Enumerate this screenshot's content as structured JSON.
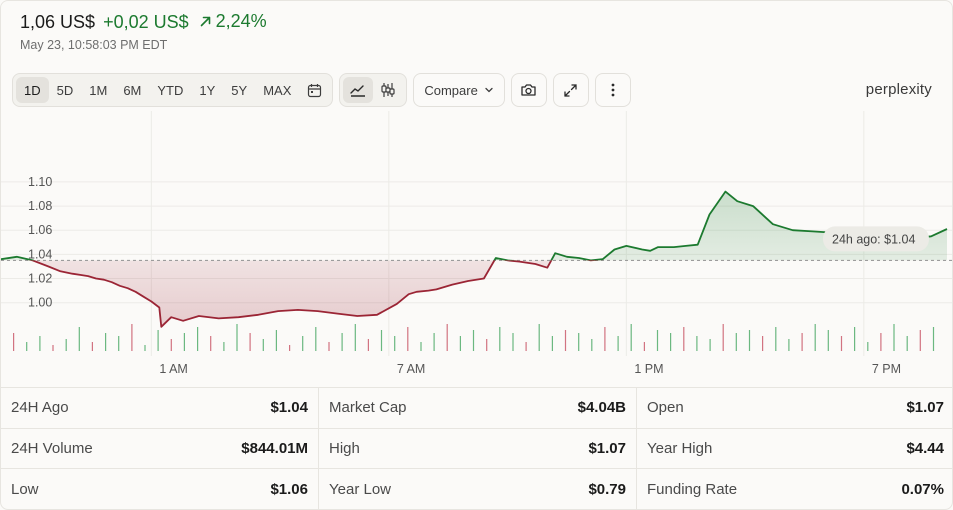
{
  "header": {
    "price": "1,06 US$",
    "change": "+0,02 US$",
    "change_pct": "2,24%",
    "timestamp": "May 23, 10:58:03 PM EDT",
    "trend_icon": "arrow-up-right-icon",
    "positive_color": "#1c7a2f"
  },
  "toolbar": {
    "ranges": [
      "1D",
      "5D",
      "1M",
      "6M",
      "YTD",
      "1Y",
      "5Y",
      "MAX"
    ],
    "active_range": "1D",
    "compare_label": "Compare"
  },
  "brand": "perplexity",
  "chart_data": {
    "type": "line",
    "x_ticks": [
      "1 AM",
      "7 AM",
      "1 PM",
      "7 PM"
    ],
    "y_ticks": [
      1.0,
      1.02,
      1.04,
      1.06,
      1.08,
      1.1
    ],
    "reference_line": {
      "value": 1.035,
      "label": "24h ago: $1.04"
    },
    "colors": {
      "above": "#1c7a2f",
      "below": "#9b2535",
      "up_volume": "#2e9b4d",
      "down_volume": "#c0394f"
    },
    "x": [
      0,
      0.4,
      0.8,
      1.2,
      1.5,
      1.8,
      2.0,
      2.2,
      2.4,
      2.6,
      2.8,
      3.0,
      3.2,
      3.4,
      3.6,
      3.8,
      4.0,
      4.05,
      4.3,
      4.6,
      5.0,
      5.5,
      6.0,
      6.5,
      7.0,
      7.5,
      8.0,
      8.5,
      9.0,
      9.5,
      10.0,
      10.3,
      10.5,
      10.8,
      11.0,
      11.4,
      11.8,
      12.2,
      12.5,
      12.8,
      13.1,
      13.5,
      13.8,
      14.0,
      14.3,
      14.6,
      14.9,
      15.2,
      15.5,
      15.8,
      16.2,
      16.4,
      16.6,
      16.8,
      17.0,
      17.3,
      17.6,
      17.9,
      18.3,
      18.6,
      19.0,
      19.5,
      20.0,
      20.5,
      21.0,
      21.5,
      22.0,
      22.5,
      23.0,
      23.5,
      23.9
    ],
    "values": [
      1.036,
      1.038,
      1.035,
      1.03,
      1.026,
      1.024,
      1.023,
      1.022,
      1.02,
      1.019,
      1.017,
      1.014,
      1.012,
      1.009,
      1.005,
      1.001,
      0.996,
      0.98,
      0.988,
      0.985,
      0.989,
      0.987,
      0.988,
      0.99,
      0.993,
      0.994,
      0.993,
      0.991,
      0.989,
      0.99,
      0.999,
      1.007,
      1.009,
      1.01,
      1.011,
      1.015,
      1.018,
      1.02,
      1.037,
      1.035,
      1.034,
      1.032,
      1.029,
      1.041,
      1.038,
      1.037,
      1.035,
      1.036,
      1.044,
      1.047,
      1.044,
      1.043,
      1.046,
      1.046,
      1.046,
      1.047,
      1.048,
      1.073,
      1.092,
      1.084,
      1.08,
      1.065,
      1.06,
      1.059,
      1.058,
      1.057,
      1.058,
      1.053,
      1.053,
      1.055,
      1.061
    ],
    "volume": [
      0.6,
      0.3,
      0.5,
      0.2,
      0.4,
      0.8,
      0.3,
      0.6,
      0.5,
      0.9,
      0.2,
      0.7,
      0.4,
      0.6,
      0.8,
      0.5,
      0.3,
      0.9,
      0.6,
      0.4,
      0.7,
      0.2,
      0.5,
      0.8,
      0.3,
      0.6,
      0.9,
      0.4,
      0.7,
      0.5,
      0.8,
      0.3,
      0.6,
      0.9,
      0.5,
      0.7,
      0.4,
      0.8,
      0.6,
      0.3,
      0.9,
      0.5,
      0.7,
      0.6,
      0.4,
      0.8,
      0.5,
      0.9,
      0.3,
      0.7,
      0.6,
      0.8,
      0.5,
      0.4,
      0.9,
      0.6,
      0.7,
      0.5,
      0.8,
      0.4,
      0.6,
      0.9,
      0.7,
      0.5,
      0.8,
      0.3,
      0.6,
      0.9,
      0.5,
      0.7,
      0.8
    ],
    "ylim": [
      0.96,
      1.115
    ],
    "xlim": [
      0,
      24
    ],
    "grid": true
  },
  "stats": [
    [
      {
        "label": "24H Ago",
        "value": "$1.04"
      },
      {
        "label": "Market Cap",
        "value": "$4.04B"
      },
      {
        "label": "Open",
        "value": "$1.07"
      }
    ],
    [
      {
        "label": "24H Volume",
        "value": "$844.01M"
      },
      {
        "label": "High",
        "value": "$1.07"
      },
      {
        "label": "Year High",
        "value": "$4.44"
      }
    ],
    [
      {
        "label": "Low",
        "value": "$1.06"
      },
      {
        "label": "Year Low",
        "value": "$0.79"
      },
      {
        "label": "Funding Rate",
        "value": "0.07%"
      }
    ]
  ]
}
